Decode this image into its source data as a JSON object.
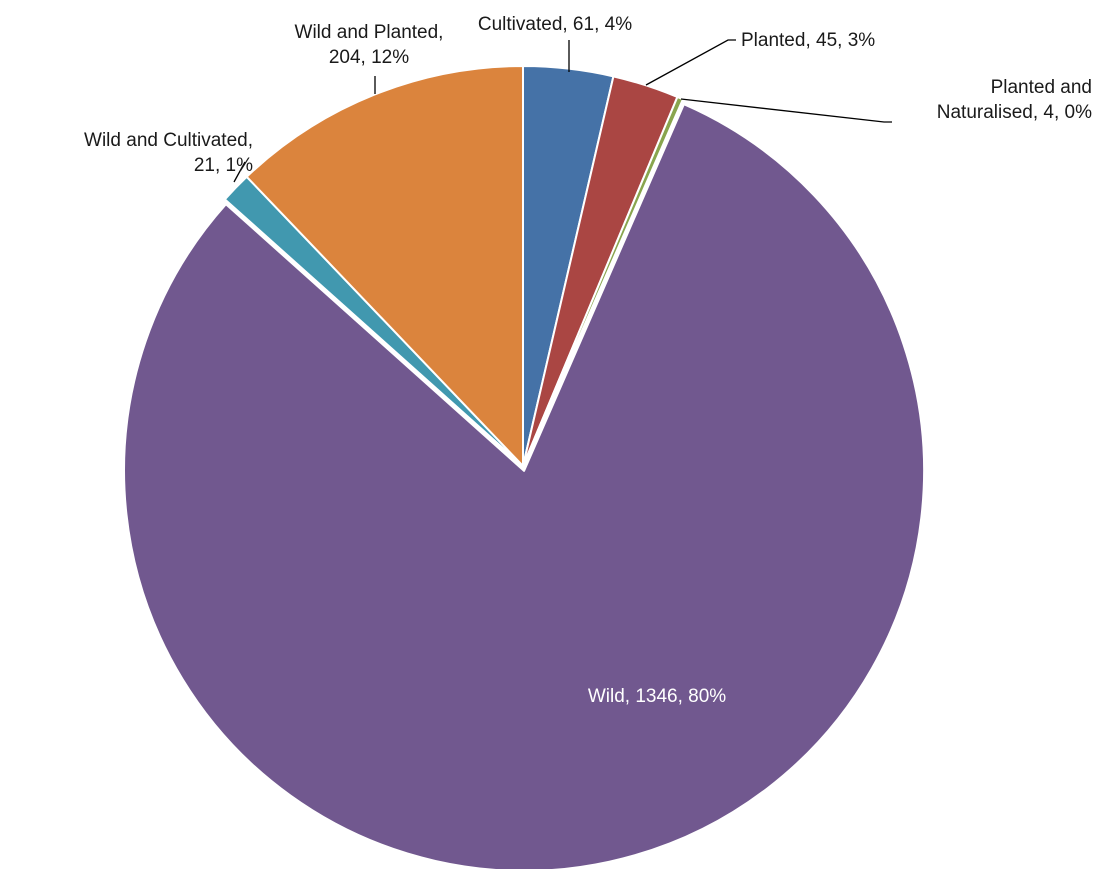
{
  "chart_data": {
    "type": "pie",
    "slices": [
      {
        "name": "Cultivated",
        "value": 61,
        "percent": "4%",
        "color": "#4572A7",
        "label_lines": [
          "Cultivated, 61, 4%"
        ]
      },
      {
        "name": "Planted",
        "value": 45,
        "percent": "3%",
        "color": "#AA4643",
        "label_lines": [
          "Planted, 45, 3%"
        ]
      },
      {
        "name": "Planted and Naturalised",
        "value": 4,
        "percent": "0%",
        "color": "#89A54E",
        "label_lines": [
          "Planted and",
          "Naturalised, 4, 0%"
        ]
      },
      {
        "name": "Wild",
        "value": 1346,
        "percent": "80%",
        "color": "#71588F",
        "label_lines": [
          "Wild, 1346, 80%"
        ]
      },
      {
        "name": "Wild and Cultivated",
        "value": 21,
        "percent": "1%",
        "color": "#4198AF",
        "label_lines": [
          "Wild and Cultivated,",
          "21, 1%"
        ]
      },
      {
        "name": "Wild and Planted",
        "value": 204,
        "percent": "12%",
        "color": "#DB843D",
        "label_lines": [
          "Wild and Planted,",
          "204, 12%"
        ]
      }
    ],
    "start_angle_deg": 0,
    "direction": "clockwise",
    "exploded": [
      "Wild"
    ],
    "legend": "none"
  }
}
